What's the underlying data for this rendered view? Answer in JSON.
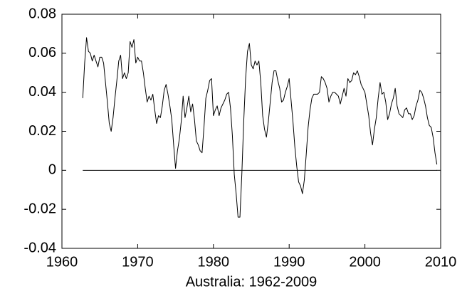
{
  "chart_data": {
    "type": "line",
    "xlabel": "Australia: 1962-2009",
    "x": [
      1962.75,
      1963,
      1963.25,
      1963.5,
      1963.75,
      1964,
      1964.25,
      1964.5,
      1964.75,
      1965,
      1965.25,
      1965.5,
      1965.75,
      1966,
      1966.25,
      1966.5,
      1966.75,
      1967,
      1967.25,
      1967.5,
      1967.75,
      1968,
      1968.25,
      1968.5,
      1968.75,
      1969,
      1969.25,
      1969.5,
      1969.75,
      1970,
      1970.25,
      1970.5,
      1970.75,
      1971,
      1971.25,
      1971.5,
      1971.75,
      1972,
      1972.25,
      1972.5,
      1972.75,
      1973,
      1973.25,
      1973.5,
      1973.75,
      1974,
      1974.25,
      1974.5,
      1974.75,
      1975,
      1975.25,
      1975.5,
      1975.75,
      1976,
      1976.25,
      1976.5,
      1976.75,
      1977,
      1977.25,
      1977.5,
      1977.75,
      1978,
      1978.25,
      1978.5,
      1978.75,
      1979,
      1979.25,
      1979.5,
      1979.75,
      1980,
      1980.25,
      1980.5,
      1980.75,
      1981,
      1981.25,
      1981.5,
      1981.75,
      1982,
      1982.25,
      1982.5,
      1982.75,
      1983,
      1983.25,
      1983.5,
      1983.75,
      1984,
      1984.25,
      1984.5,
      1984.75,
      1985,
      1985.25,
      1985.5,
      1985.75,
      1986,
      1986.25,
      1986.5,
      1986.75,
      1987,
      1987.25,
      1987.5,
      1987.75,
      1988,
      1988.25,
      1988.5,
      1988.75,
      1989,
      1989.25,
      1989.5,
      1989.75,
      1990,
      1990.25,
      1990.5,
      1990.75,
      1991,
      1991.25,
      1991.5,
      1991.75,
      1992,
      1992.25,
      1992.5,
      1992.75,
      1993,
      1993.25,
      1993.5,
      1993.75,
      1994,
      1994.25,
      1994.5,
      1994.75,
      1995,
      1995.25,
      1995.5,
      1995.75,
      1996,
      1996.25,
      1996.5,
      1996.75,
      1997,
      1997.25,
      1997.5,
      1997.75,
      1998,
      1998.25,
      1998.5,
      1998.75,
      1999,
      1999.25,
      1999.5,
      1999.75,
      2000,
      2000.25,
      2000.5,
      2000.75,
      2001,
      2001.25,
      2001.5,
      2001.75,
      2002,
      2002.25,
      2002.5,
      2002.75,
      2003,
      2003.25,
      2003.5,
      2003.75,
      2004,
      2004.25,
      2004.5,
      2004.75,
      2005,
      2005.25,
      2005.5,
      2005.75,
      2006,
      2006.25,
      2006.5,
      2006.75,
      2007,
      2007.25,
      2007.5,
      2007.75,
      2008,
      2008.25,
      2008.5,
      2008.75,
      2009,
      2009.25,
      2009.5
    ],
    "series": [
      {
        "color": "#000000",
        "values": [
          0.037,
          0.055,
          0.068,
          0.061,
          0.06,
          0.056,
          0.059,
          0.056,
          0.053,
          0.058,
          0.058,
          0.055,
          0.045,
          0.035,
          0.024,
          0.02,
          0.027,
          0.037,
          0.046,
          0.056,
          0.059,
          0.047,
          0.05,
          0.047,
          0.05,
          0.066,
          0.063,
          0.067,
          0.055,
          0.058,
          0.056,
          0.056,
          0.05,
          0.042,
          0.035,
          0.038,
          0.036,
          0.039,
          0.031,
          0.024,
          0.028,
          0.027,
          0.033,
          0.041,
          0.044,
          0.039,
          0.033,
          0.026,
          0.013,
          0.001,
          0.01,
          0.016,
          0.025,
          0.038,
          0.027,
          0.032,
          0.038,
          0.03,
          0.034,
          0.026,
          0.015,
          0.013,
          0.01,
          0.009,
          0.022,
          0.037,
          0.041,
          0.046,
          0.047,
          0.028,
          0.031,
          0.033,
          0.028,
          0.032,
          0.034,
          0.036,
          0.039,
          0.04,
          0.032,
          0.018,
          -0.002,
          -0.012,
          -0.024,
          -0.024,
          -0.002,
          0.025,
          0.047,
          0.061,
          0.065,
          0.054,
          0.052,
          0.056,
          0.054,
          0.056,
          0.045,
          0.028,
          0.021,
          0.017,
          0.025,
          0.035,
          0.045,
          0.051,
          0.051,
          0.046,
          0.042,
          0.035,
          0.036,
          0.04,
          0.043,
          0.047,
          0.036,
          0.025,
          0.012,
          0.002,
          -0.006,
          -0.008,
          -0.012,
          -0.005,
          0.008,
          0.022,
          0.031,
          0.037,
          0.039,
          0.039,
          0.039,
          0.04,
          0.048,
          0.047,
          0.045,
          0.042,
          0.035,
          0.038,
          0.04,
          0.04,
          0.039,
          0.038,
          0.034,
          0.038,
          0.042,
          0.038,
          0.047,
          0.045,
          0.046,
          0.05,
          0.049,
          0.051,
          0.048,
          0.044,
          0.042,
          0.04,
          0.034,
          0.028,
          0.019,
          0.013,
          0.021,
          0.027,
          0.037,
          0.045,
          0.039,
          0.04,
          0.035,
          0.026,
          0.029,
          0.034,
          0.037,
          0.042,
          0.033,
          0.029,
          0.028,
          0.027,
          0.031,
          0.032,
          0.029,
          0.029,
          0.026,
          0.028,
          0.033,
          0.036,
          0.041,
          0.04,
          0.037,
          0.033,
          0.027,
          0.023,
          0.022,
          0.017,
          0.009,
          0.003
        ]
      }
    ],
    "reference_line": {
      "y": 0,
      "color": "#000000"
    },
    "xlim": [
      1960,
      2010
    ],
    "xticks": [
      1960,
      1970,
      1980,
      1990,
      2000,
      2010
    ],
    "ylim": [
      -0.04,
      0.08
    ],
    "yticks": [
      -0.04,
      -0.02,
      0,
      0.02,
      0.04,
      0.06,
      0.08
    ],
    "grid": false
  }
}
